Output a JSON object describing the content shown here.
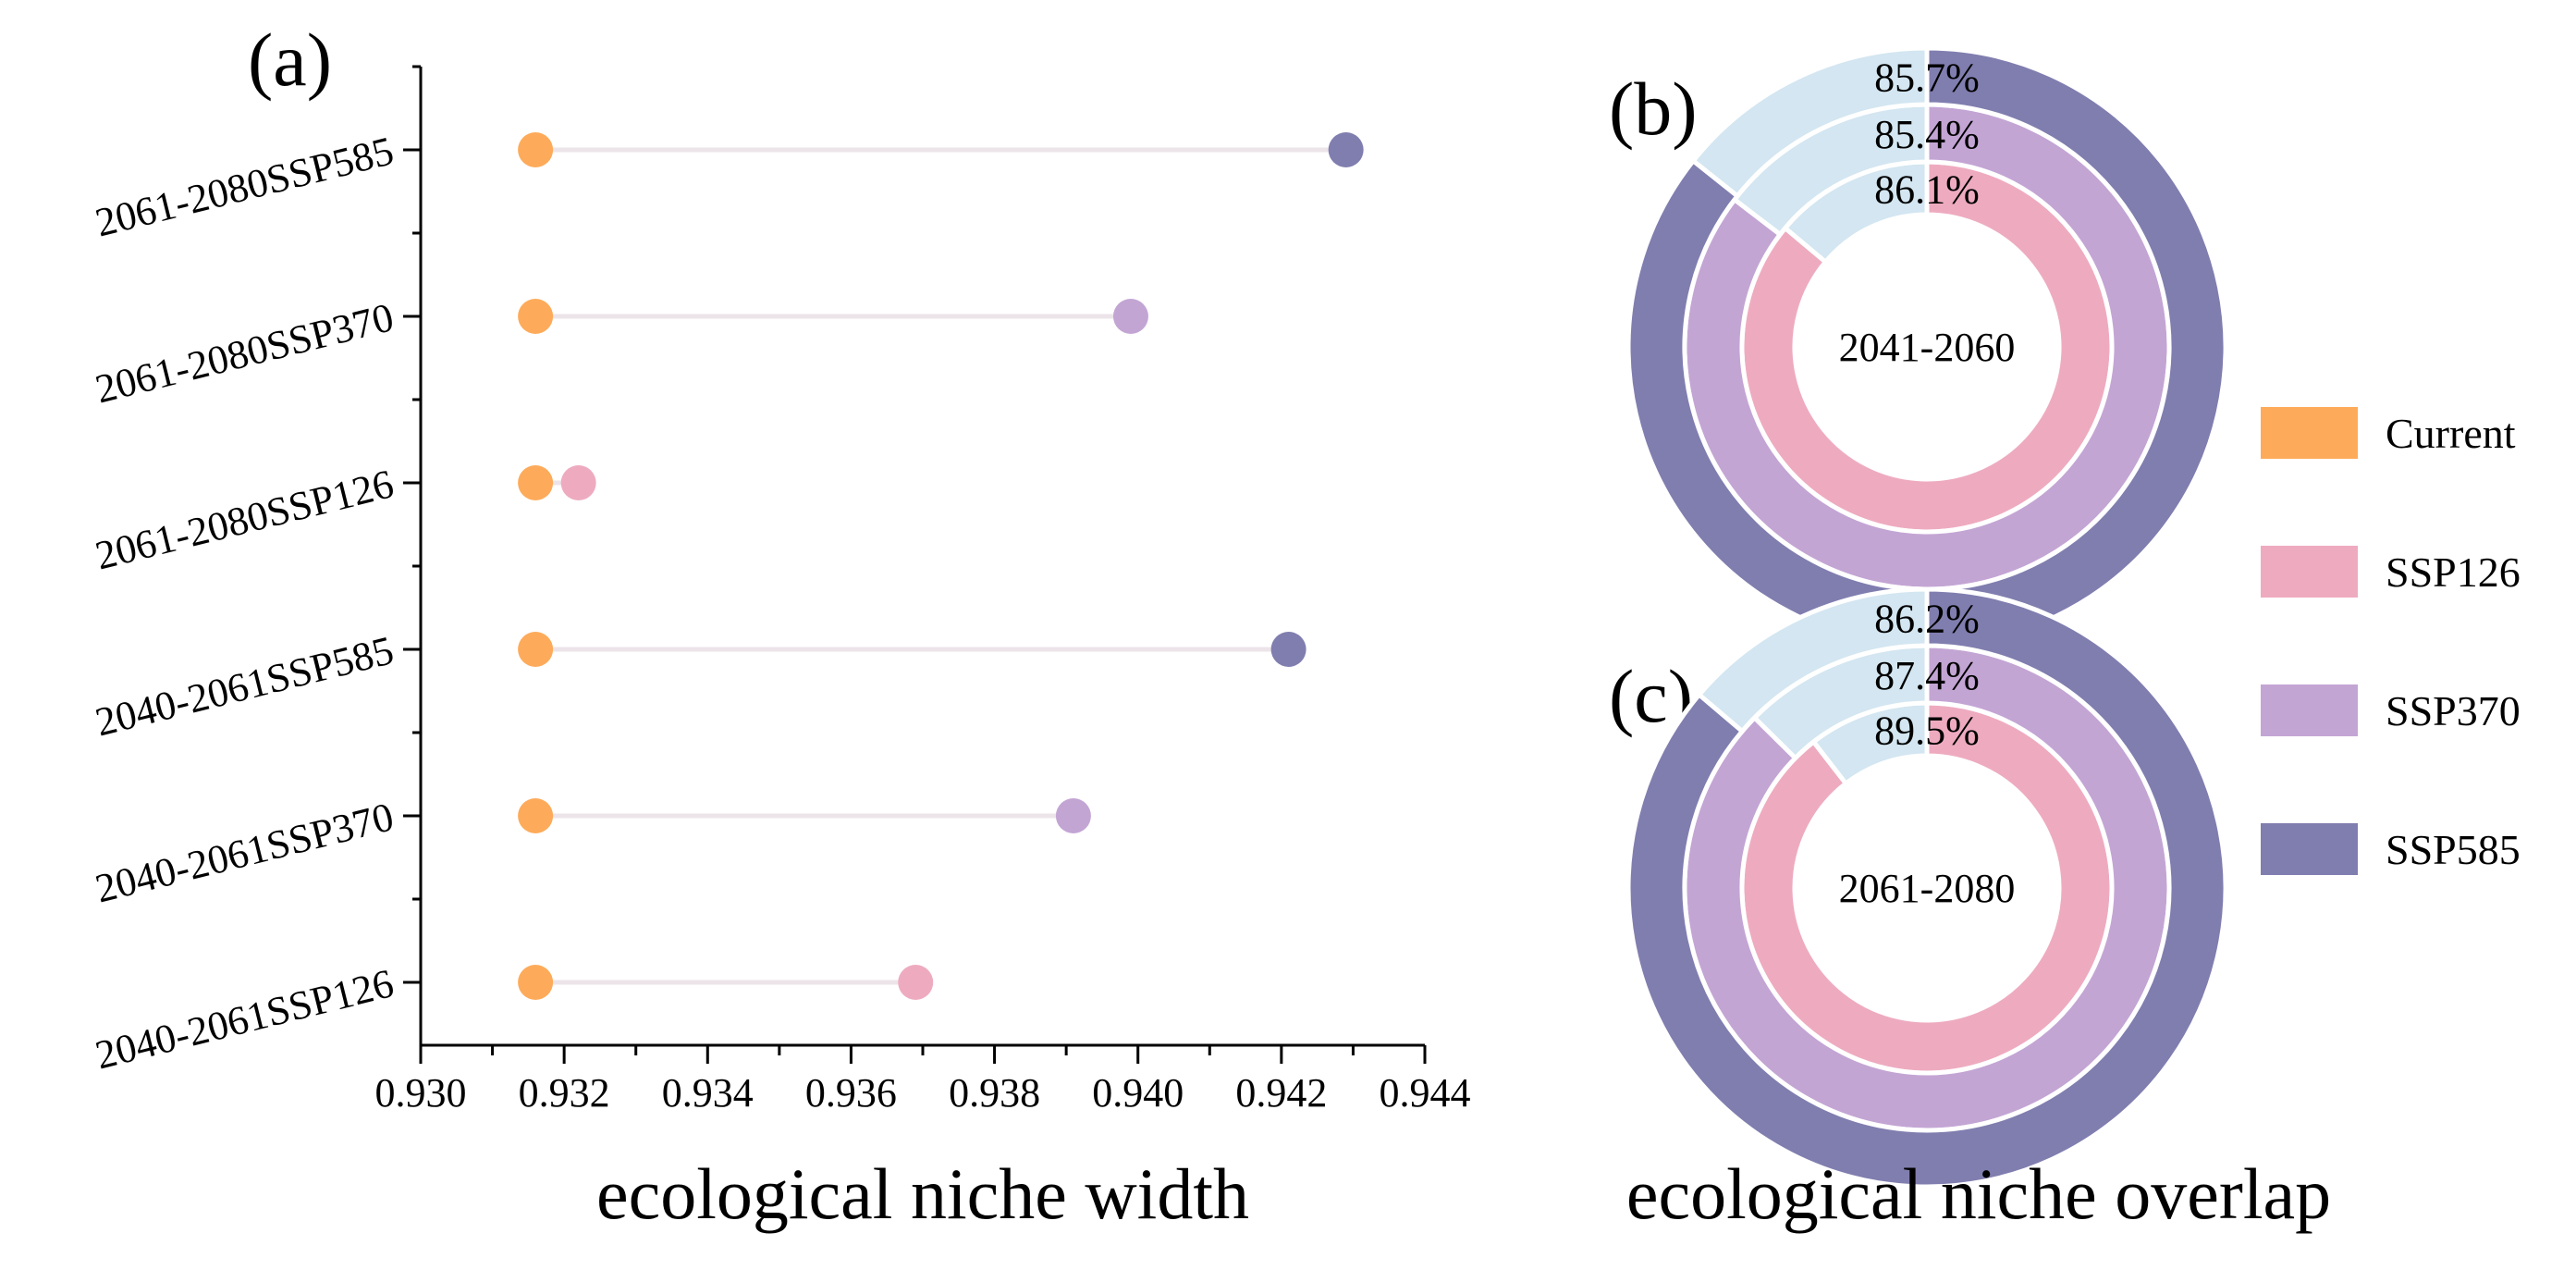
{
  "chart_data": [
    {
      "type": "dumbbell",
      "panel": "(a)",
      "xlabel": "ecological niche width",
      "xlim": [
        0.93,
        0.944
      ],
      "xticks": [
        "0.930",
        "0.932",
        "0.934",
        "0.936",
        "0.938",
        "0.940",
        "0.942",
        "0.944"
      ],
      "categories": [
        "2061-2080SSP585",
        "2061-2080SSP370",
        "2061-2080SSP126",
        "2040-2061SSP585",
        "2040-2061SSP370",
        "2040-2061SSP126"
      ],
      "current": [
        0.9316,
        0.9316,
        0.9316,
        0.9316,
        0.9316,
        0.9316
      ],
      "future": [
        0.9429,
        0.9399,
        0.9322,
        0.9421,
        0.9391,
        0.9369
      ],
      "future_scenario": [
        "SSP585",
        "SSP370",
        "SSP126",
        "SSP585",
        "SSP370",
        "SSP126"
      ]
    },
    {
      "type": "pie",
      "subtype": "nested-donut",
      "panel": "(b)",
      "center_label": "2041-2060",
      "rings": [
        {
          "name": "SSP126",
          "value": 86.1,
          "label": "86.1%"
        },
        {
          "name": "SSP370",
          "value": 85.4,
          "label": "85.4%"
        },
        {
          "name": "SSP585",
          "value": 85.7,
          "label": "85.7%"
        }
      ]
    },
    {
      "type": "pie",
      "subtype": "nested-donut",
      "panel": "(c)",
      "center_label": "2061-2080",
      "rings": [
        {
          "name": "SSP126",
          "value": 89.5,
          "label": "89.5%"
        },
        {
          "name": "SSP370",
          "value": 87.4,
          "label": "87.4%"
        },
        {
          "name": "SSP585",
          "value": 86.2,
          "label": "86.2%"
        }
      ]
    }
  ],
  "overlap_xlabel": "ecological niche overlap",
  "legend": [
    {
      "name": "Current",
      "color": "#fdab5a"
    },
    {
      "name": "SSP126",
      "color": "#eeabc0"
    },
    {
      "name": "SSP370",
      "color": "#c3a5d4"
    },
    {
      "name": "SSP585",
      "color": "#807eaf"
    }
  ],
  "colors": {
    "current": "#fdab5a",
    "SSP126": "#eeabc0",
    "SSP370": "#c3a5d4",
    "SSP585": "#807eaf",
    "remainder": "#d3e6f1",
    "connector": "#ece4e9"
  }
}
